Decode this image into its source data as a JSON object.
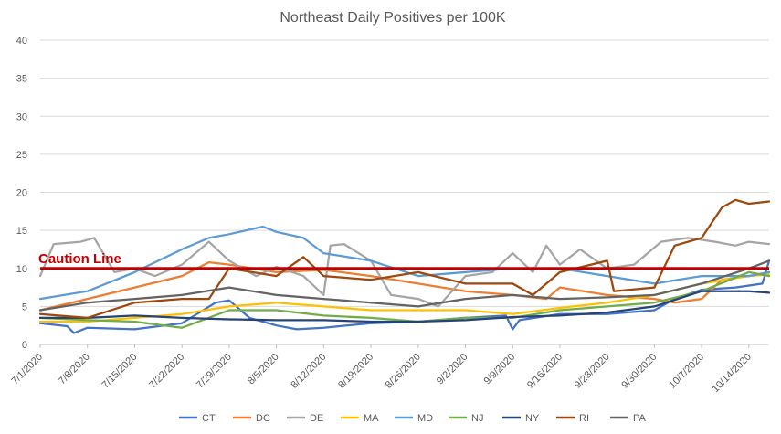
{
  "chart_data": {
    "type": "line",
    "title": "Northeast Daily Positives per 100K",
    "xlabel": "",
    "ylabel": "",
    "ylim": [
      0,
      40
    ],
    "yticks": [
      0,
      5,
      10,
      15,
      20,
      25,
      30,
      35,
      40
    ],
    "grid": true,
    "legend_position": "bottom",
    "x_start": "7/1/2020",
    "x_end": "10/17/2020",
    "x_tick_labels": [
      "7/1/2020",
      "7/8/2020",
      "7/15/2020",
      "7/22/2020",
      "7/29/2020",
      "8/5/2020",
      "8/12/2020",
      "8/19/2020",
      "8/26/2020",
      "9/2/2020",
      "9/9/2020",
      "9/16/2020",
      "9/23/2020",
      "9/30/2020",
      "10/7/2020",
      "10/14/2020"
    ],
    "annotation": {
      "text": "Caution Line",
      "value": 10,
      "color": "#c00000"
    },
    "series": [
      {
        "name": "CT",
        "color": "#4472c4",
        "x": [
          "7/1/2020",
          "7/5/2020",
          "7/6/2020",
          "7/8/2020",
          "7/15/2020",
          "7/22/2020",
          "7/27/2020",
          "7/29/2020",
          "8/1/2020",
          "8/5/2020",
          "8/8/2020",
          "8/12/2020",
          "8/19/2020",
          "8/26/2020",
          "9/2/2020",
          "9/8/2020",
          "9/9/2020",
          "9/10/2020",
          "9/16/2020",
          "9/23/2020",
          "9/30/2020",
          "10/3/2020",
          "10/7/2020",
          "10/12/2020",
          "10/16/2020",
          "10/17/2020"
        ],
        "y": [
          2.8,
          2.4,
          1.5,
          2.2,
          2.0,
          2.8,
          5.5,
          5.8,
          3.5,
          2.5,
          2.0,
          2.2,
          2.8,
          3.0,
          3.5,
          3.8,
          2.0,
          3.2,
          4.0,
          4.0,
          4.5,
          6.0,
          7.2,
          7.5,
          8.0,
          11.0
        ]
      },
      {
        "name": "DC",
        "color": "#ed7d31",
        "x": [
          "7/1/2020",
          "7/8/2020",
          "7/15/2020",
          "7/22/2020",
          "7/26/2020",
          "7/29/2020",
          "8/5/2020",
          "8/12/2020",
          "8/19/2020",
          "8/26/2020",
          "9/2/2020",
          "9/9/2020",
          "9/14/2020",
          "9/16/2020",
          "9/23/2020",
          "9/30/2020",
          "10/3/2020",
          "10/7/2020",
          "10/10/2020",
          "10/14/2020",
          "10/17/2020"
        ],
        "y": [
          4.5,
          6.0,
          7.5,
          9.0,
          10.8,
          10.5,
          9.5,
          9.8,
          9.0,
          8.0,
          7.0,
          6.5,
          6.0,
          7.5,
          6.5,
          6.0,
          5.5,
          6.0,
          8.5,
          9.0,
          9.5
        ]
      },
      {
        "name": "DE",
        "color": "#a5a5a5",
        "x": [
          "7/1/2020",
          "7/3/2020",
          "7/7/2020",
          "7/9/2020",
          "7/12/2020",
          "7/15/2020",
          "7/18/2020",
          "7/22/2020",
          "7/26/2020",
          "7/29/2020",
          "8/2/2020",
          "8/5/2020",
          "8/9/2020",
          "8/12/2020",
          "8/13/2020",
          "8/15/2020",
          "8/19/2020",
          "8/22/2020",
          "8/26/2020",
          "8/29/2020",
          "9/2/2020",
          "9/6/2020",
          "9/9/2020",
          "9/12/2020",
          "9/14/2020",
          "9/16/2020",
          "9/19/2020",
          "9/23/2020",
          "9/27/2020",
          "10/1/2020",
          "10/5/2020",
          "10/9/2020",
          "10/12/2020",
          "10/14/2020",
          "10/17/2020"
        ],
        "y": [
          9.0,
          13.2,
          13.5,
          14.0,
          9.5,
          10.0,
          9.0,
          10.5,
          13.5,
          11.0,
          9.0,
          10.2,
          9.0,
          6.5,
          13.0,
          13.2,
          11.0,
          6.5,
          6.0,
          5.0,
          9.0,
          9.5,
          12.0,
          9.5,
          13.0,
          10.5,
          12.5,
          10.0,
          10.5,
          13.5,
          14.0,
          13.5,
          13.0,
          13.5,
          13.2
        ]
      },
      {
        "name": "MA",
        "color": "#ffc000",
        "x": [
          "7/1/2020",
          "7/8/2020",
          "7/15/2020",
          "7/22/2020",
          "7/29/2020",
          "8/5/2020",
          "8/12/2020",
          "8/19/2020",
          "8/26/2020",
          "9/2/2020",
          "9/9/2020",
          "9/16/2020",
          "9/23/2020",
          "9/30/2020",
          "10/7/2020",
          "10/14/2020",
          "10/17/2020"
        ],
        "y": [
          3.0,
          3.0,
          3.5,
          4.0,
          5.0,
          5.5,
          5.0,
          4.5,
          4.5,
          4.5,
          4.0,
          4.8,
          5.5,
          6.5,
          8.0,
          9.0,
          9.2
        ]
      },
      {
        "name": "MD",
        "color": "#5b9bd5",
        "x": [
          "7/1/2020",
          "7/8/2020",
          "7/15/2020",
          "7/22/2020",
          "7/26/2020",
          "7/29/2020",
          "8/3/2020",
          "8/5/2020",
          "8/9/2020",
          "8/12/2020",
          "8/19/2020",
          "8/26/2020",
          "9/2/2020",
          "9/9/2020",
          "9/16/2020",
          "9/23/2020",
          "9/30/2020",
          "10/7/2020",
          "10/14/2020",
          "10/17/2020"
        ],
        "y": [
          6.0,
          7.0,
          9.5,
          12.5,
          14.0,
          14.5,
          15.5,
          14.8,
          14.0,
          12.0,
          11.0,
          9.0,
          9.5,
          10.0,
          10.0,
          9.0,
          8.0,
          9.0,
          9.0,
          9.5
        ]
      },
      {
        "name": "NJ",
        "color": "#70ad47",
        "x": [
          "7/1/2020",
          "7/8/2020",
          "7/15/2020",
          "7/22/2020",
          "7/29/2020",
          "8/5/2020",
          "8/12/2020",
          "8/19/2020",
          "8/26/2020",
          "9/2/2020",
          "9/9/2020",
          "9/16/2020",
          "9/23/2020",
          "9/30/2020",
          "10/7/2020",
          "10/14/2020",
          "10/17/2020"
        ],
        "y": [
          3.5,
          3.2,
          3.0,
          2.2,
          4.5,
          4.5,
          3.8,
          3.5,
          3.0,
          3.5,
          3.5,
          4.5,
          5.0,
          5.5,
          7.0,
          9.5,
          9.0
        ]
      },
      {
        "name": "NY",
        "color": "#264478",
        "x": [
          "7/1/2020",
          "7/8/2020",
          "7/15/2020",
          "7/22/2020",
          "7/29/2020",
          "8/5/2020",
          "8/12/2020",
          "8/19/2020",
          "8/26/2020",
          "9/2/2020",
          "9/9/2020",
          "9/16/2020",
          "9/23/2020",
          "9/30/2020",
          "10/7/2020",
          "10/14/2020",
          "10/17/2020"
        ],
        "y": [
          3.5,
          3.5,
          3.8,
          3.5,
          3.3,
          3.2,
          3.2,
          3.0,
          3.0,
          3.2,
          3.6,
          3.8,
          4.2,
          5.0,
          7.0,
          7.0,
          6.8
        ]
      },
      {
        "name": "RI",
        "color": "#9e480e",
        "x": [
          "7/1/2020",
          "7/8/2020",
          "7/15/2020",
          "7/22/2020",
          "7/26/2020",
          "7/29/2020",
          "8/5/2020",
          "8/9/2020",
          "8/12/2020",
          "8/19/2020",
          "8/26/2020",
          "9/2/2020",
          "9/9/2020",
          "9/12/2020",
          "9/16/2020",
          "9/23/2020",
          "9/24/2020",
          "9/30/2020",
          "10/3/2020",
          "10/7/2020",
          "10/10/2020",
          "10/12/2020",
          "10/14/2020",
          "10/17/2020"
        ],
        "y": [
          4.0,
          3.5,
          5.5,
          6.0,
          6.0,
          10.0,
          9.0,
          11.5,
          9.0,
          8.5,
          9.5,
          8.0,
          8.0,
          6.5,
          9.5,
          11.0,
          7.0,
          7.5,
          13.0,
          14.0,
          18.0,
          19.0,
          18.5,
          18.8
        ]
      },
      {
        "name": "PA",
        "color": "#636363",
        "x": [
          "7/1/2020",
          "7/8/2020",
          "7/15/2020",
          "7/22/2020",
          "7/29/2020",
          "8/5/2020",
          "8/12/2020",
          "8/19/2020",
          "8/26/2020",
          "9/2/2020",
          "9/9/2020",
          "9/16/2020",
          "9/23/2020",
          "9/30/2020",
          "10/7/2020",
          "10/14/2020",
          "10/17/2020"
        ],
        "y": [
          4.5,
          5.5,
          6.0,
          6.5,
          7.5,
          6.5,
          6.0,
          5.5,
          5.0,
          6.0,
          6.5,
          6.0,
          6.2,
          6.5,
          8.0,
          10.0,
          11.0
        ]
      }
    ]
  }
}
